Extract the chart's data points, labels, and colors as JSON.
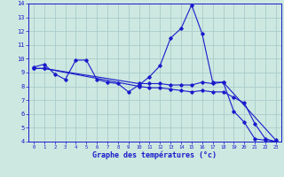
{
  "xlabel": "Graphe des températures (°c)",
  "background_color": "#cce8e0",
  "grid_color": "#aacccc",
  "line_color": "#1a1acc",
  "xlim": [
    -0.5,
    23.5
  ],
  "ylim": [
    4,
    14
  ],
  "yticks": [
    4,
    5,
    6,
    7,
    8,
    9,
    10,
    11,
    12,
    13,
    14
  ],
  "xticks": [
    0,
    1,
    2,
    3,
    4,
    5,
    6,
    7,
    8,
    9,
    10,
    11,
    12,
    13,
    14,
    15,
    16,
    17,
    18,
    19,
    20,
    21,
    22,
    23
  ],
  "series1_x": [
    0,
    1,
    2,
    3,
    4,
    5,
    6,
    7,
    8,
    9,
    10,
    11,
    12,
    13,
    14,
    15,
    16,
    17,
    18,
    19,
    20,
    21,
    22,
    23
  ],
  "series1_y": [
    9.4,
    9.6,
    8.9,
    8.5,
    9.9,
    9.9,
    8.5,
    8.3,
    8.2,
    7.6,
    8.1,
    8.7,
    9.5,
    11.5,
    12.2,
    13.9,
    11.8,
    8.3,
    8.3,
    6.2,
    5.4,
    4.2,
    4.1,
    4.0
  ],
  "series2_x": [
    0,
    1,
    10,
    11,
    12,
    13,
    14,
    15,
    16,
    17,
    18,
    23
  ],
  "series2_y": [
    9.3,
    9.3,
    8.2,
    8.2,
    8.2,
    8.1,
    8.1,
    8.1,
    8.3,
    8.2,
    8.3,
    4.1
  ],
  "series3_x": [
    0,
    1,
    10,
    11,
    12,
    13,
    14,
    15,
    16,
    17,
    18,
    19,
    20,
    21,
    22,
    23
  ],
  "series3_y": [
    9.3,
    9.3,
    8.0,
    7.9,
    7.9,
    7.8,
    7.7,
    7.6,
    7.7,
    7.6,
    7.6,
    7.2,
    6.8,
    5.3,
    4.2,
    4.0
  ]
}
